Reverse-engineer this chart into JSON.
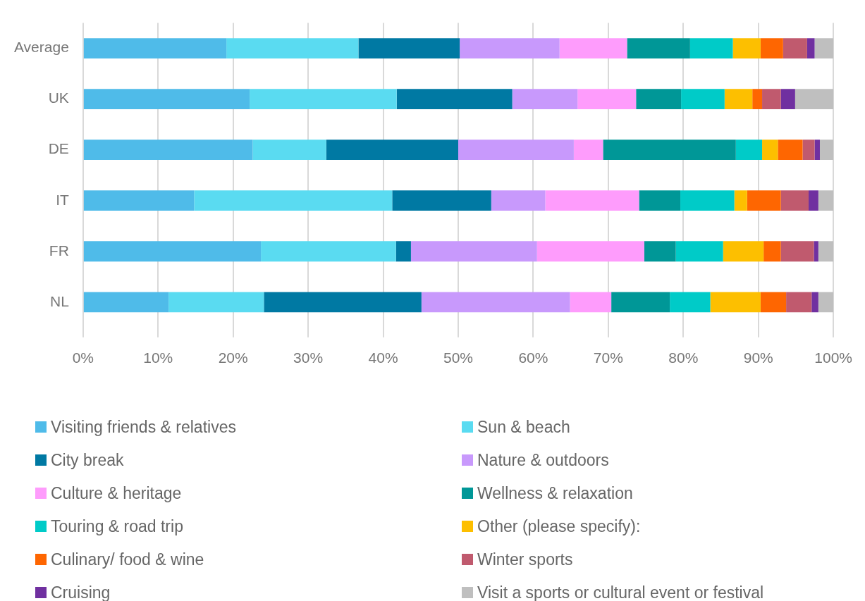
{
  "chart_data": {
    "type": "bar",
    "orientation": "horizontal",
    "stacked": true,
    "grid": "x",
    "legend": "bottom",
    "categories": [
      "Average",
      "UK",
      "DE",
      "IT",
      "FR",
      "NL"
    ],
    "xlim": [
      0,
      100
    ],
    "xticks": [
      {
        "value": 0,
        "label": "0%"
      },
      {
        "value": 10,
        "label": "10%"
      },
      {
        "value": 20,
        "label": "20%"
      },
      {
        "value": 30,
        "label": "30%"
      },
      {
        "value": 40,
        "label": "40%"
      },
      {
        "value": 50,
        "label": "50%"
      },
      {
        "value": 60,
        "label": "60%"
      },
      {
        "value": 70,
        "label": "70%"
      },
      {
        "value": 80,
        "label": "80%"
      },
      {
        "value": 90,
        "label": "90%"
      },
      {
        "value": 100,
        "label": "100%"
      }
    ],
    "series": [
      {
        "name": "Visiting friends & relatives",
        "color": "#4fbbe9",
        "values": [
          19.1,
          22.2,
          22.6,
          14.8,
          23.7,
          11.4
        ]
      },
      {
        "name": "Sun & beach",
        "color": "#5adbf1",
        "values": [
          17.6,
          19.6,
          9.8,
          26.4,
          18.0,
          12.7
        ]
      },
      {
        "name": "City break",
        "color": "#0079a3",
        "values": [
          13.5,
          15.4,
          17.6,
          13.2,
          2.0,
          21.0
        ]
      },
      {
        "name": "Nature & outdoors",
        "color": "#c899fc",
        "values": [
          13.3,
          8.7,
          15.4,
          7.2,
          16.8,
          19.8
        ]
      },
      {
        "name": "Culture & heritage",
        "color": "#fe9cfc",
        "values": [
          9.0,
          7.8,
          3.9,
          12.5,
          14.3,
          5.5
        ]
      },
      {
        "name": "Wellness & relaxation",
        "color": "#009797",
        "values": [
          8.4,
          6.0,
          17.7,
          5.5,
          4.2,
          7.8
        ]
      },
      {
        "name": "Touring & road trip",
        "color": "#00cbc8",
        "values": [
          5.7,
          5.8,
          3.5,
          7.2,
          6.3,
          5.4
        ]
      },
      {
        "name": "Other (please specify):",
        "color": "#fdbf00",
        "values": [
          3.7,
          3.7,
          2.1,
          1.7,
          5.4,
          6.7
        ]
      },
      {
        "name": "Culinary/ food & wine",
        "color": "#fe6601",
        "values": [
          3.0,
          1.3,
          3.3,
          4.5,
          2.3,
          3.4
        ]
      },
      {
        "name": "Winter sports",
        "color": "#c05a6e",
        "values": [
          3.2,
          2.5,
          1.6,
          3.7,
          4.4,
          3.4
        ]
      },
      {
        "name": "Cruising",
        "color": "#7030a0",
        "values": [
          1.0,
          1.9,
          0.7,
          1.3,
          0.6,
          0.9
        ]
      },
      {
        "name": "Visit a sports or cultural event or festival",
        "color": "#bfbfbf",
        "values": [
          2.5,
          5.1,
          1.8,
          2.0,
          2.0,
          2.0
        ]
      }
    ]
  }
}
